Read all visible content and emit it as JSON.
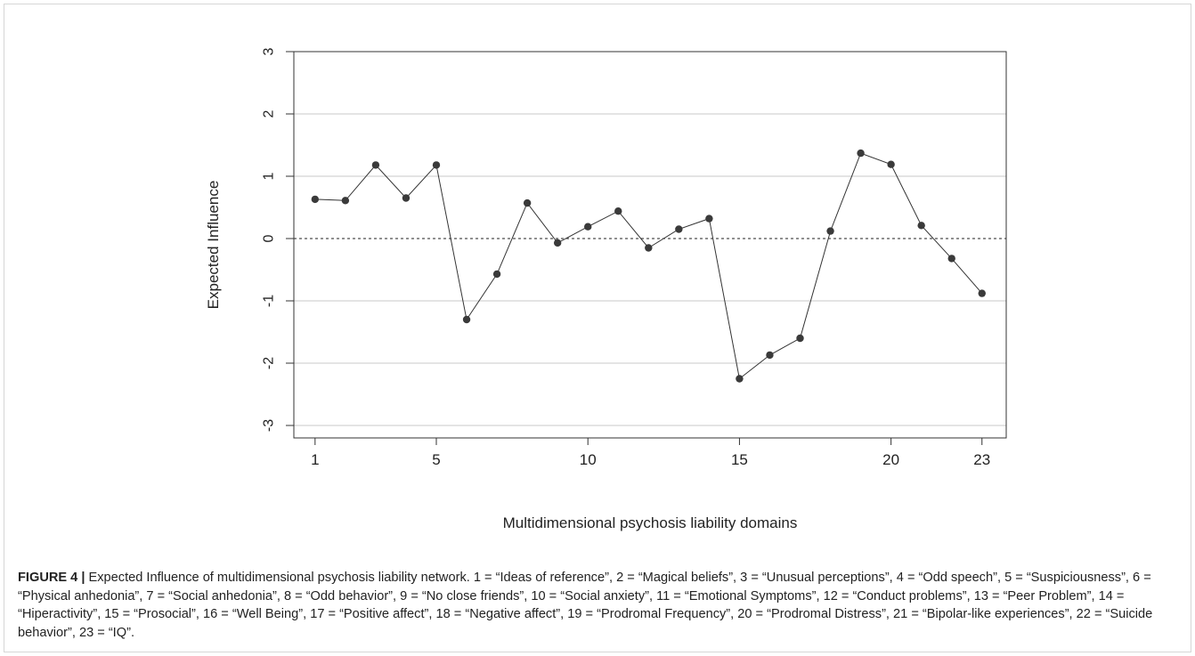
{
  "figure": {
    "label": "FIGURE 4 |",
    "caption": " Expected Influence of multidimensional psychosis liability network. 1 = “Ideas of reference”, 2 = “Magical beliefs”, 3 = “Unusual perceptions”, 4 = “Odd speech”, 5 = “Suspiciousness”, 6 = “Physical anhedonia”, 7 = “Social anhedonia”, 8 = “Odd behavior”, 9 = “No close friends”, 10 = “Social anxiety”, 11 = “Emotional Symptoms”, 12 = “Conduct problems”, 13 = “Peer Problem”, 14 = “Hiperactivity”, 15 = “Prosocial”, 16 = “Well Being”, 17 = “Positive affect”, 18 = “Negative affect”, 19 = “Prodromal Frequency”, 20 = “Prodromal Distress”, 21 = “Bipolar-like experiences”, 22 = “Suicide behavior”, 23 = “IQ”."
  },
  "chart_data": {
    "type": "line",
    "title": "",
    "xlabel": "Multidimensional psychosis liability domains",
    "ylabel": "Expected Influence",
    "x": [
      1,
      2,
      3,
      4,
      5,
      6,
      7,
      8,
      9,
      10,
      11,
      12,
      13,
      14,
      15,
      16,
      17,
      18,
      19,
      20,
      21,
      22,
      23
    ],
    "values": [
      0.63,
      0.61,
      1.18,
      0.65,
      1.18,
      -1.3,
      -0.57,
      0.57,
      -0.07,
      0.19,
      0.44,
      -0.15,
      0.15,
      0.32,
      -2.25,
      -1.87,
      -1.6,
      0.12,
      1.37,
      1.19,
      0.21,
      -0.32,
      -0.88
    ],
    "xticks": [
      "1",
      "5",
      "10",
      "15",
      "20",
      "23"
    ],
    "xtick_values": [
      1,
      5,
      10,
      15,
      20,
      23
    ],
    "yticks": [
      "-3",
      "-2",
      "-1",
      "0",
      "1",
      "2",
      "3"
    ],
    "ytick_values": [
      -3,
      -2,
      -1,
      0,
      1,
      2,
      3
    ],
    "xlim": [
      0.3,
      23.8
    ],
    "ylim": [
      -3.2,
      3.0
    ],
    "grid": "horizontal",
    "reference_line": 0,
    "colors": {
      "line": "#333333",
      "point": "#3a3a3a",
      "grid": "#c8c8c8",
      "reference": "#222222"
    }
  }
}
